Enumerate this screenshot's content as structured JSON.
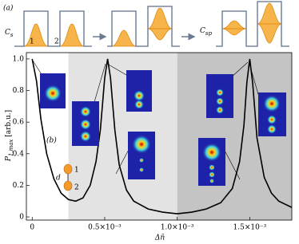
{
  "schematic": {
    "label": "(a)",
    "c_s": {
      "main": "C",
      "sub": "s"
    },
    "c_sp": {
      "main": "C",
      "sub": "sp"
    },
    "waveguide_labels": [
      "1",
      "2"
    ]
  },
  "dimer": {
    "d": "d",
    "labels": [
      "1",
      "2"
    ]
  },
  "chart_data": {
    "type": "line",
    "panel_label": "(b)",
    "ylabel": {
      "main": "P",
      "sub": "1,max",
      "unit": " [arb.u.]"
    },
    "xlabel": "Δn̄",
    "x": [
      0,
      3e-05,
      6e-05,
      0.0001,
      0.00015,
      0.0002,
      0.00025,
      0.0003,
      0.00035,
      0.0004,
      0.00044,
      0.00047,
      0.0005,
      0.00052,
      0.00054,
      0.00057,
      0.0006,
      0.00065,
      0.0007,
      0.0008,
      0.0009,
      0.001,
      0.0011,
      0.0012,
      0.0013,
      0.00138,
      0.00143,
      0.00146,
      0.00148,
      0.0015,
      0.00152,
      0.00155,
      0.0016,
      0.00165,
      0.0017,
      0.00179
    ],
    "values": [
      1.0,
      0.86,
      0.62,
      0.4,
      0.24,
      0.15,
      0.11,
      0.1,
      0.12,
      0.2,
      0.35,
      0.55,
      0.88,
      1.0,
      0.88,
      0.55,
      0.33,
      0.17,
      0.1,
      0.05,
      0.03,
      0.02,
      0.03,
      0.05,
      0.09,
      0.18,
      0.35,
      0.58,
      0.85,
      1.0,
      0.85,
      0.5,
      0.25,
      0.15,
      0.1,
      0.06
    ],
    "color": "#000000",
    "shaded_regions": [
      {
        "x0": 0.00025,
        "x1": 0.001,
        "color": "#e3e3e3"
      },
      {
        "x0": 0.001,
        "x1": 0.00179,
        "color": "#c4c4c4"
      }
    ],
    "xlim": [
      -4e-05,
      0.00179
    ],
    "xticks": [
      0,
      {
        "value": 0.0005,
        "label": "0.5×10⁻³"
      },
      {
        "value": 0.001,
        "label": "1.0×10⁻³"
      },
      {
        "value": 0.0015,
        "label": "1.5×10⁻³"
      }
    ],
    "ylim": [
      -0.02,
      1.04
    ],
    "yticks": [
      0,
      0.2,
      0.4,
      0.6,
      0.8,
      {
        "value": 1,
        "label": "1.0"
      }
    ]
  }
}
